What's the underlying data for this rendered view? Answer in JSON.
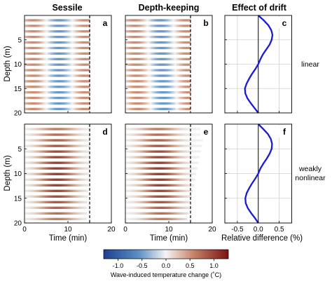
{
  "chart_data": {
    "type": "heatmap",
    "column_titles": [
      "Sessile",
      "Depth-keeping",
      "Effect of drift"
    ],
    "row_labels": [
      [
        "linear"
      ],
      [
        "weakly",
        "nonlinear"
      ]
    ],
    "panel_letters": [
      "a",
      "b",
      "c",
      "d",
      "e",
      "f"
    ],
    "ylabel": "Depth (m)",
    "xlabel_time": "Time (min)",
    "xlabel_diff": "Relative difference (%)",
    "depth_ylim": [
      0,
      20
    ],
    "depth_yticks": [
      5,
      10,
      15,
      20
    ],
    "time_xlim": [
      0,
      20
    ],
    "time_xticks": [
      0,
      10,
      20
    ],
    "diff_xlim": [
      -0.8,
      0.8
    ],
    "diff_xticks": [
      -0.5,
      0,
      0.5
    ],
    "diff_xtick_labels": [
      "-0.5",
      "0.0",
      "0.5"
    ],
    "dashed_line_time": 15,
    "colorbar": {
      "label": "Wave-induced temperature change (˚C)",
      "range": [
        -1.3,
        1.3
      ],
      "ticks": [
        -1.0,
        -0.5,
        0.0,
        0.5,
        1.0
      ],
      "tick_labels": [
        "-1.0",
        "-0.5",
        "0.0",
        "0.5",
        "1.0"
      ],
      "colors": [
        "#1f3f8f",
        "#4f87c2",
        "#f2f2f2",
        "#c47a5a",
        "#7a1212"
      ]
    },
    "series": [
      {
        "panel": "c",
        "depth": [
          0,
          1,
          2,
          3,
          4,
          5,
          6,
          7,
          8,
          9,
          10,
          11,
          12,
          13,
          14,
          15,
          16,
          17,
          18,
          19,
          20
        ],
        "diff": [
          0,
          0.13,
          0.24,
          0.31,
          0.34,
          0.32,
          0.27,
          0.19,
          0.11,
          0.05,
          0.0,
          -0.07,
          -0.15,
          -0.22,
          -0.28,
          -0.32,
          -0.31,
          -0.26,
          -0.18,
          -0.09,
          0
        ],
        "color": "#1a1ad6"
      },
      {
        "panel": "f",
        "depth": [
          0,
          1,
          2,
          3,
          4,
          5,
          6,
          7,
          8,
          9,
          10,
          11,
          12,
          13,
          14,
          15,
          16,
          17,
          18,
          19,
          20
        ],
        "diff": [
          0,
          0.12,
          0.23,
          0.3,
          0.33,
          0.32,
          0.27,
          0.2,
          0.12,
          0.05,
          0.0,
          -0.07,
          -0.15,
          -0.22,
          -0.28,
          -0.31,
          -0.3,
          -0.25,
          -0.17,
          -0.08,
          0
        ],
        "color": "#1a1ad6"
      }
    ]
  }
}
